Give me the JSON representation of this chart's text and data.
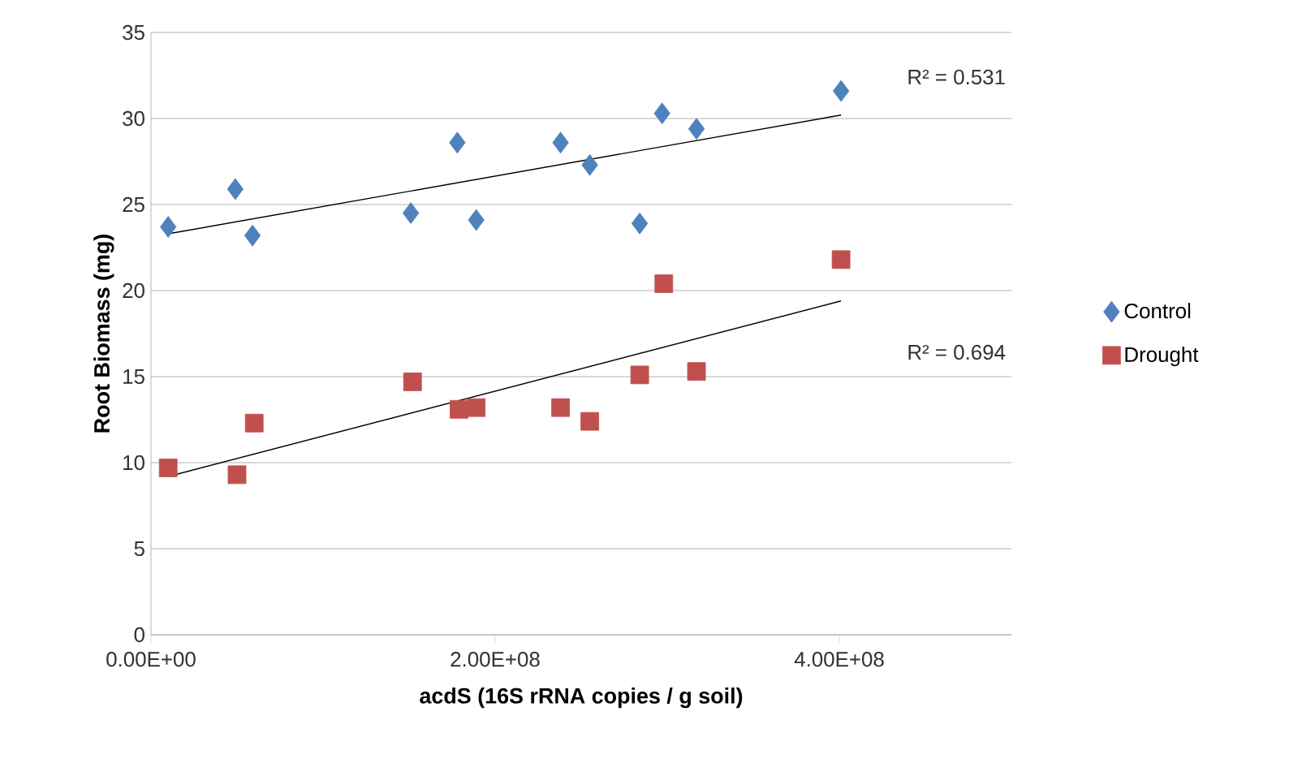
{
  "chart_data": {
    "type": "scatter",
    "xlabel": "acdS (16S rRNA copies / g soil)",
    "ylabel": "Root Biomass (mg)",
    "xlim": [
      0,
      500000000
    ],
    "xticks": [
      {
        "value": 0,
        "label": "0.00E+00"
      },
      {
        "value": 200000000,
        "label": "2.00E+08"
      },
      {
        "value": 400000000,
        "label": "4.00E+08"
      }
    ],
    "ylim": [
      0,
      35
    ],
    "yticks": [
      0,
      5,
      10,
      15,
      20,
      25,
      30,
      35
    ],
    "grid": "y",
    "legend": "right",
    "series": [
      {
        "name": "Control",
        "color": "#4f81bd",
        "marker": "diamond",
        "x": [
          10000000,
          49000000,
          59000000,
          151000000,
          178000000,
          189000000,
          238000000,
          255000000,
          284000000,
          297000000,
          317000000,
          401000000
        ],
        "values": [
          23.7,
          25.9,
          23.2,
          24.5,
          28.6,
          24.1,
          28.6,
          27.3,
          23.9,
          30.3,
          29.4,
          31.6
        ]
      },
      {
        "name": "Drought",
        "color": "#c0504d",
        "marker": "square",
        "x": [
          10000000,
          50000000,
          60000000,
          152000000,
          179000000,
          189000000,
          238000000,
          255000000,
          284000000,
          298000000,
          317000000,
          401000000
        ],
        "values": [
          9.7,
          9.3,
          12.3,
          14.7,
          13.1,
          13.2,
          13.2,
          12.4,
          15.1,
          20.4,
          15.3,
          21.8
        ]
      },
      {
        "type": "line",
        "color": "#000000",
        "marker": "none",
        "x": [
          10000000,
          401000000
        ],
        "values": [
          23.3,
          30.2
        ]
      },
      {
        "type": "line",
        "color": "#000000",
        "marker": "none",
        "x": [
          10000000,
          401000000
        ],
        "values": [
          9.2,
          19.4
        ]
      }
    ],
    "annotations": [
      "R² = 0.531",
      "R² = 0.694"
    ]
  }
}
